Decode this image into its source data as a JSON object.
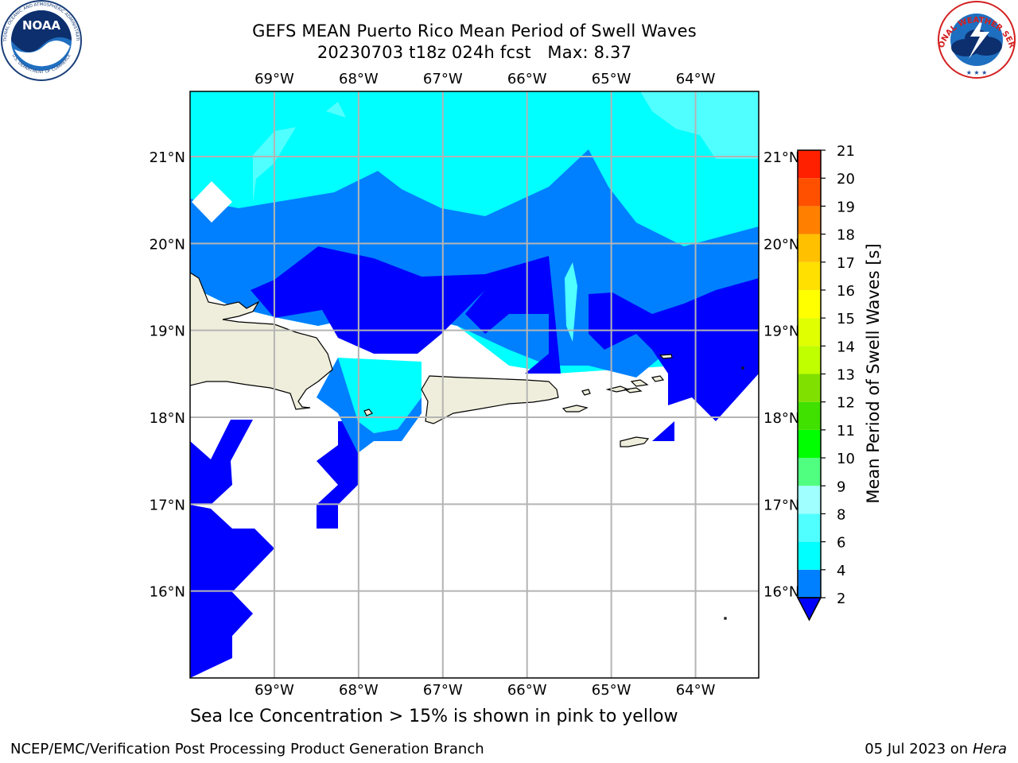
{
  "header": {
    "title_line1": "GEFS MEAN Puerto Rico Mean Period of Swell Waves",
    "title_line2": "20230703 t18z 024h fcst   Max: 8.37"
  },
  "logos": {
    "left": {
      "name": "NOAA",
      "ring_text": "NATIONAL OCEANIC AND ATMOSPHERIC ADMINISTRATION",
      "bottom_text": "U.S. DEPARTMENT OF COMMERCE"
    },
    "right": {
      "ring_text": "NATIONAL WEATHER SERVICE"
    }
  },
  "map": {
    "lon_ticks": [
      "69°W",
      "68°W",
      "67°W",
      "66°W",
      "65°W",
      "64°W"
    ],
    "lat_ticks": [
      "21°N",
      "20°N",
      "19°N",
      "18°N",
      "17°N",
      "16°N"
    ],
    "extent": {
      "lon_min": -70.0,
      "lon_max": -63.25,
      "lat_min": 15.0,
      "lat_max": 21.75
    },
    "ocean_color": "#ffffff",
    "land_color": "#efeedc",
    "grid_color": "#b4b4b4"
  },
  "colorbar": {
    "label": "Mean Period of Swell Waves [s]",
    "ticks": [
      "2",
      "4",
      "6",
      "8",
      "9",
      "10",
      "11",
      "12",
      "13",
      "14",
      "15",
      "16",
      "17",
      "18",
      "19",
      "20",
      "21"
    ],
    "levels": [
      2,
      4,
      6,
      8,
      9,
      10,
      11,
      12,
      13,
      14,
      15,
      16,
      17,
      18,
      19,
      20,
      21
    ],
    "under_color": "#0000ff",
    "colors": [
      "#0080ff",
      "#00ffff",
      "#50ffff",
      "#a0ffff",
      "#50ff80",
      "#00ff00",
      "#40e000",
      "#80e000",
      "#c0ff00",
      "#e0ff00",
      "#ffff00",
      "#ffe000",
      "#ffc000",
      "#ff8000",
      "#ff5000",
      "#ff2000"
    ]
  },
  "caption": "Sea Ice Concentration > 15% is shown in pink to yellow",
  "footer": {
    "left": "NCEP/EMC/Verification Post Processing Product Generation Branch",
    "right_prefix": "05 Jul 2023 on ",
    "right_host": "Hera"
  }
}
